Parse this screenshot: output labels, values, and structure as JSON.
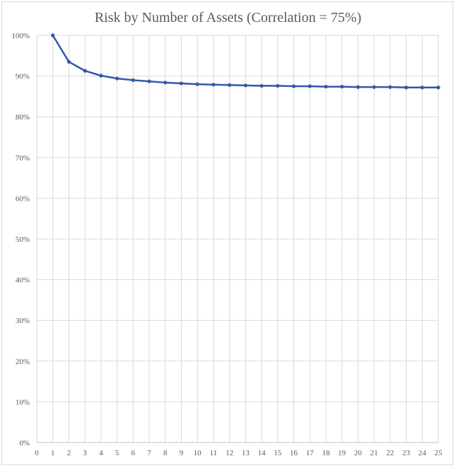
{
  "chart_data": {
    "type": "line",
    "title": "Risk by Number of Assets (Correlation = 75%)",
    "xlabel": "",
    "ylabel": "",
    "x": [
      1,
      2,
      3,
      4,
      5,
      6,
      7,
      8,
      9,
      10,
      11,
      12,
      13,
      14,
      15,
      16,
      17,
      18,
      19,
      20,
      21,
      22,
      23,
      24,
      25
    ],
    "series": [
      {
        "values": [
          100,
          93.5,
          91.3,
          90.1,
          89.4,
          89.0,
          88.7,
          88.4,
          88.2,
          88.0,
          87.9,
          87.8,
          87.7,
          87.6,
          87.6,
          87.5,
          87.5,
          87.4,
          87.4,
          87.3,
          87.3,
          87.3,
          87.2,
          87.2,
          87.2
        ],
        "color": "#3158a8"
      }
    ],
    "xlim": [
      0,
      25
    ],
    "ylim": [
      0,
      100
    ],
    "x_tick_labels": [
      "0",
      "1",
      "2",
      "3",
      "4",
      "5",
      "6",
      "7",
      "8",
      "9",
      "10",
      "11",
      "12",
      "13",
      "14",
      "15",
      "16",
      "17",
      "18",
      "19",
      "20",
      "21",
      "22",
      "23",
      "24",
      "25"
    ],
    "y_tick_labels": [
      "0%",
      "10%",
      "20%",
      "30%",
      "40%",
      "50%",
      "60%",
      "70%",
      "80%",
      "90%",
      "100%"
    ],
    "grid": true,
    "legend": "none"
  }
}
